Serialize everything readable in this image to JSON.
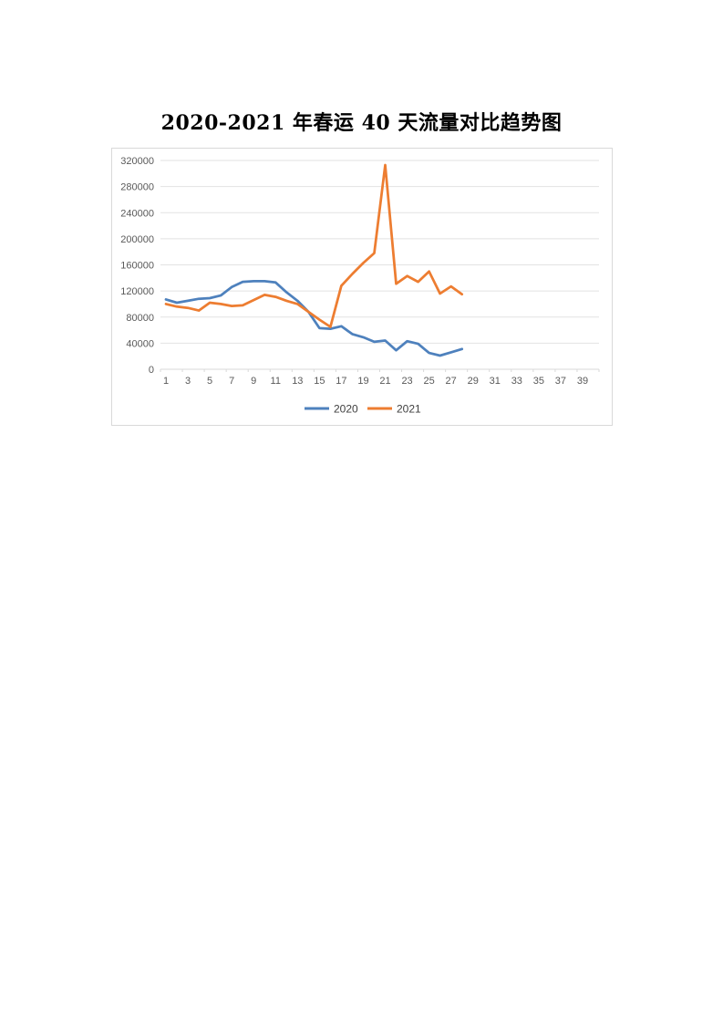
{
  "page": {
    "background_color": "#ffffff"
  },
  "title": "2020-2021 年春运 40 天流量对比趋势图",
  "chart_data": {
    "type": "line",
    "title": "2020-2021 年春运 40 天流量对比趋势图",
    "x": [
      1,
      2,
      3,
      4,
      5,
      6,
      7,
      8,
      9,
      10,
      11,
      12,
      13,
      14,
      15,
      16,
      17,
      18,
      19,
      20,
      21,
      22,
      23,
      24,
      25,
      26,
      27,
      28
    ],
    "x_axis_days_total": 40,
    "x_tick_labels": [
      "1",
      "3",
      "5",
      "7",
      "9",
      "11",
      "13",
      "15",
      "17",
      "19",
      "21",
      "23",
      "25",
      "27",
      "29",
      "31",
      "33",
      "35",
      "37",
      "39"
    ],
    "y_tick_labels": [
      "0",
      "40000",
      "80000",
      "120000",
      "160000",
      "200000",
      "240000",
      "280000",
      "320000"
    ],
    "ylim": [
      0,
      320000
    ],
    "y_tick_step": 40000,
    "grid": "horizontal-only",
    "legend_position": "bottom-center",
    "series": [
      {
        "name": "2020",
        "color": "#4E81BD",
        "values": [
          107000,
          102000,
          105000,
          108000,
          109000,
          113000,
          126000,
          134000,
          135000,
          135000,
          133000,
          118000,
          105000,
          88000,
          63000,
          62000,
          66000,
          54000,
          49000,
          42000,
          44000,
          29000,
          43000,
          39000,
          25000,
          21000,
          26000,
          31000
        ]
      },
      {
        "name": "2021",
        "color": "#ED7D31",
        "values": [
          100000,
          96000,
          94000,
          90000,
          102000,
          100000,
          97000,
          98000,
          106000,
          114000,
          111000,
          105000,
          100000,
          88000,
          76000,
          65000,
          128000,
          146000,
          163000,
          178000,
          313000,
          131000,
          143000,
          134000,
          150000,
          116000,
          127000,
          115000
        ]
      }
    ],
    "axis_line_color": "#d9d9d9",
    "gridline_color": "#e2e2e2",
    "tick_label_color": "#595959",
    "legend_text_color": "#404040"
  }
}
